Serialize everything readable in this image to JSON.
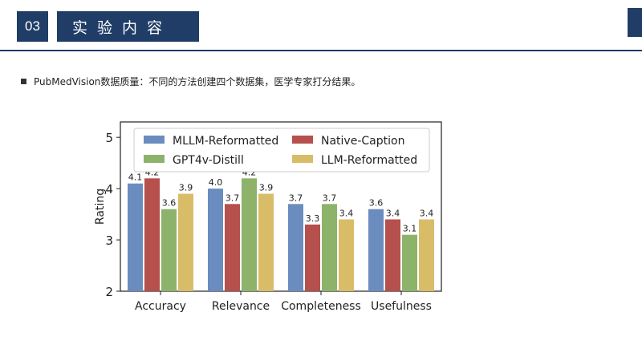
{
  "header": {
    "section_number": "03",
    "section_title": "实验内容"
  },
  "bullet": {
    "text": "PubMedVision数据质量：不同的方法创建四个数据集，医学专家打分结果。"
  },
  "chart_data": {
    "type": "bar",
    "categories": [
      "Accuracy",
      "Relevance",
      "Completeness",
      "Usefulness"
    ],
    "series": [
      {
        "name": "MLLM-Reformatted",
        "color": "#6b8cbf",
        "values": [
          4.1,
          4.0,
          3.7,
          3.6
        ]
      },
      {
        "name": "Native-Caption",
        "color": "#b5504c",
        "values": [
          4.2,
          3.7,
          3.3,
          3.4
        ]
      },
      {
        "name": "GPT4v-Distill",
        "color": "#8db36a",
        "values": [
          3.6,
          4.2,
          3.7,
          3.1
        ]
      },
      {
        "name": "LLM-Reformatted",
        "color": "#d8bc68",
        "values": [
          3.9,
          3.9,
          3.4,
          3.4
        ]
      }
    ],
    "ylabel": "Rating",
    "ylim": [
      2,
      5.3
    ],
    "yticks": [
      2,
      3,
      4,
      5
    ],
    "legend_position": "top",
    "grid": false
  }
}
